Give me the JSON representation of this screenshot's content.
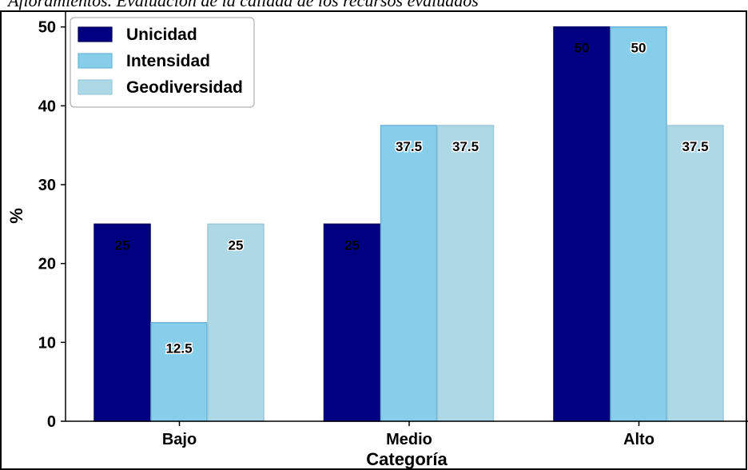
{
  "caption": "Afloramientos. Evaluación de la calidad de los recursos evaluados",
  "chart_data": {
    "type": "bar",
    "categories": [
      "Bajo",
      "Medio",
      "Alto"
    ],
    "series": [
      {
        "name": "Unicidad",
        "values": [
          25,
          25,
          50
        ],
        "labels": [
          "25",
          "25",
          "50"
        ]
      },
      {
        "name": "Intensidad",
        "values": [
          12.5,
          37.5,
          50
        ],
        "labels": [
          "12.5",
          "37.5",
          "50"
        ]
      },
      {
        "name": "Geodiversidad",
        "values": [
          25,
          37.5,
          37.5
        ],
        "labels": [
          "25",
          "37.5",
          "37.5"
        ]
      }
    ],
    "xlabel": "Categoría",
    "ylabel": "%",
    "ylim": [
      0,
      52
    ],
    "yticks": [
      0,
      10,
      20,
      30,
      40,
      50
    ],
    "legend_position": "top-left",
    "colors": [
      "#000080",
      "#87ceeb",
      "#add8e6"
    ],
    "edge_colors": [
      "#000060",
      "#6bb3d6",
      "#9cc9da"
    ],
    "grid": false
  }
}
